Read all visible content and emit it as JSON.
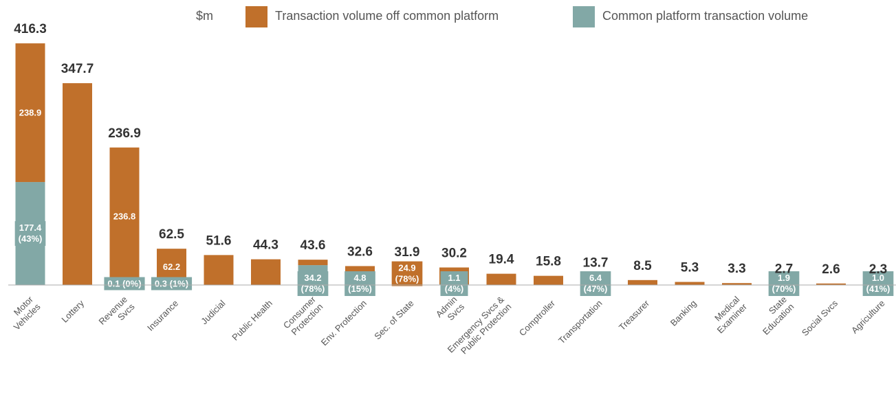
{
  "chart_data": {
    "type": "stacked_bar",
    "unit": "$m",
    "categories": [
      "Motor\nVehicles",
      "Lottery",
      "Revenue\nSvcs",
      "Insurance",
      "Judicial",
      "Public Health",
      "Consumer\nProtection",
      "Env. Protection",
      "Sec. of State",
      "Admin\nSvcs",
      "Emergency Svcs &\nPublic Protection",
      "Comptroller",
      "Transportation",
      "Treasurer",
      "Banking",
      "Medical\nExaminer",
      "State\nEducation",
      "Social Svcs",
      "Agriculture"
    ],
    "totals": [
      416.3,
      347.7,
      236.9,
      62.5,
      51.6,
      44.3,
      43.6,
      32.6,
      31.9,
      30.2,
      19.4,
      15.8,
      13.7,
      8.5,
      5.3,
      3.3,
      2.7,
      2.6,
      2.3
    ],
    "series": [
      {
        "name": "Common platform transaction volume",
        "color": "#82a8a6",
        "values": [
          177.4,
          0,
          0.1,
          0.3,
          0,
          0,
          34.2,
          4.8,
          7.0,
          1.1,
          0,
          0,
          6.4,
          0,
          0,
          0,
          1.9,
          0,
          1.0
        ],
        "value_labels": [
          "177.4\n(43%)",
          null,
          "0.1 (0%)",
          "0.3 (1%)",
          null,
          null,
          "34.2\n(78%)",
          "4.8\n(15%)",
          null,
          "1.1\n(4%)",
          null,
          null,
          "6.4\n(47%)",
          null,
          null,
          null,
          "1.9\n(70%)",
          null,
          "1.0\n(41%)"
        ]
      },
      {
        "name": "Transaction volume off common platform",
        "color": "#c0702b",
        "values": [
          238.9,
          347.7,
          236.8,
          62.2,
          51.6,
          44.3,
          9.4,
          27.8,
          24.9,
          29.1,
          19.4,
          15.8,
          7.3,
          8.5,
          5.3,
          3.3,
          0.8,
          2.6,
          1.3
        ],
        "value_labels": [
          "238.9",
          null,
          "236.8",
          "62.2",
          null,
          null,
          null,
          null,
          "24.9\n(78%)",
          null,
          null,
          null,
          null,
          null,
          null,
          null,
          null,
          null,
          null
        ]
      }
    ],
    "ylim": [
      0,
      420
    ]
  }
}
